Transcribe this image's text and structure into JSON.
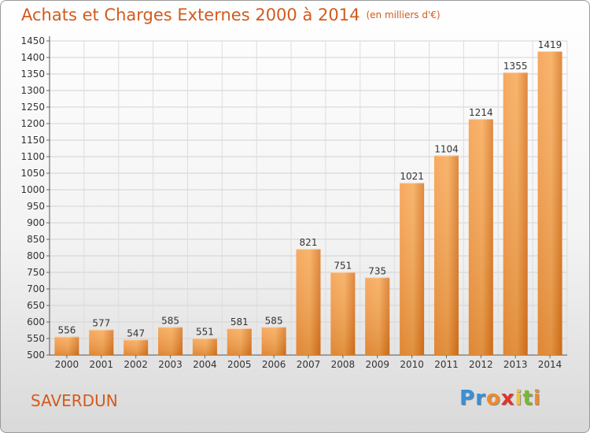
{
  "chart_data": {
    "type": "bar",
    "title": "Achats et Charges Externes 2000 à 2014",
    "subtitle": "(en milliers d'€)",
    "categories": [
      "2000",
      "2001",
      "2002",
      "2003",
      "2004",
      "2005",
      "2006",
      "2007",
      "2008",
      "2009",
      "2010",
      "2011",
      "2012",
      "2013",
      "2014"
    ],
    "values": [
      556,
      577,
      547,
      585,
      551,
      581,
      585,
      821,
      751,
      735,
      1021,
      1104,
      1214,
      1355,
      1419
    ],
    "ylim": [
      500,
      1450
    ],
    "yticks": [
      500,
      550,
      600,
      650,
      700,
      750,
      800,
      850,
      900,
      950,
      1000,
      1050,
      1100,
      1150,
      1200,
      1250,
      1300,
      1350,
      1400,
      1450
    ],
    "grid": true,
    "bar_color": "#f08a2c"
  },
  "place_name": "SAVERDUN",
  "brand": {
    "letters": [
      "P",
      "r",
      "o",
      "x",
      "i",
      "t",
      "i"
    ],
    "colors": [
      "#3a8fd6",
      "#3a8fd6",
      "#f08a2c",
      "#e0342c",
      "#f2c230",
      "#7cb82f",
      "#f08a2c"
    ]
  }
}
